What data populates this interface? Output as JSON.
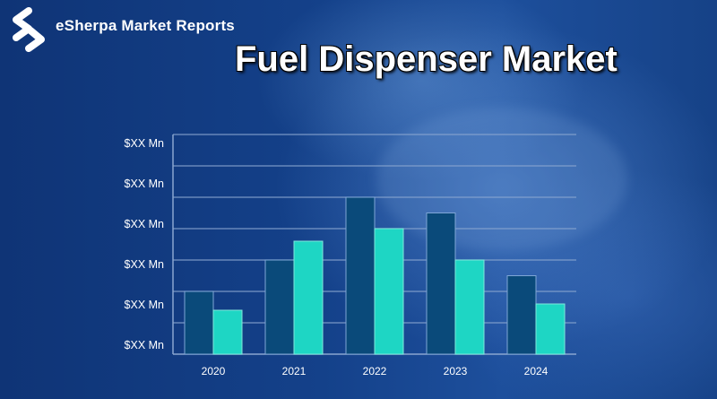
{
  "brand": {
    "name": "eSherpa Market Reports",
    "logo_icon": "esherpa-s-logo-icon"
  },
  "title": "Fuel Dispenser Market",
  "colors": {
    "series_dark": "#0a4a7a",
    "series_light": "#1ed6c4",
    "grid": "#8aa6d0"
  },
  "chart_data": {
    "type": "bar",
    "title": "Fuel Dispenser Market",
    "xlabel": "",
    "ylabel": "",
    "categories": [
      "2020",
      "2021",
      "2022",
      "2023",
      "2024"
    ],
    "y_tick_labels": [
      "$XX Mn",
      "$XX Mn",
      "$XX Mn",
      "$XX Mn",
      "$XX Mn",
      "$XX Mn"
    ],
    "ylim": [
      0,
      7
    ],
    "grid": true,
    "legend": "none",
    "series": [
      {
        "values": [
          2.0,
          3.0,
          5.0,
          4.5,
          2.5
        ]
      },
      {
        "values": [
          1.4,
          3.6,
          4.0,
          3.0,
          1.6
        ]
      }
    ]
  }
}
